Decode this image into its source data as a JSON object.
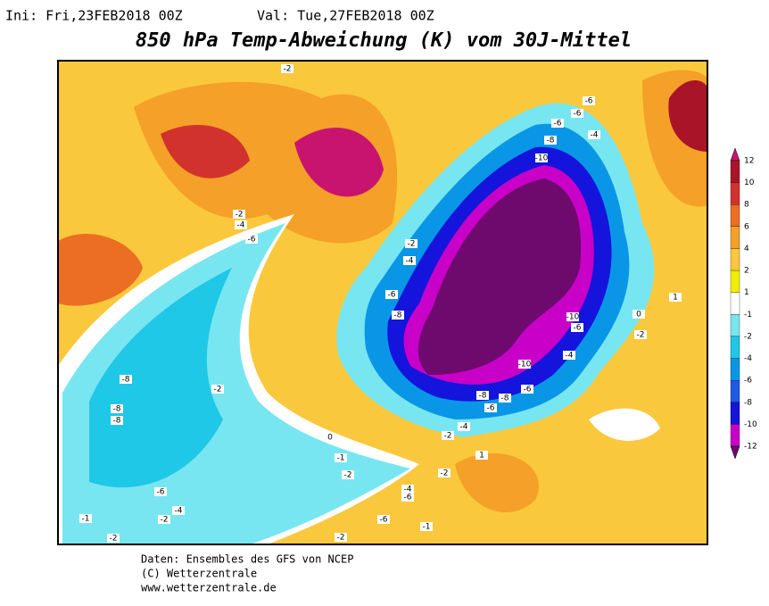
{
  "header": {
    "init": "Ini: Fri,23FEB2018 00Z",
    "valid": "Val: Tue,27FEB2018 00Z",
    "title": "850 hPa Temp-Abweichung (K) vom 30J-Mittel"
  },
  "legend": {
    "levels": [
      12,
      10,
      8,
      6,
      4,
      2,
      1,
      -1,
      -2,
      -4,
      -6,
      -8,
      -10,
      -12
    ],
    "colors": [
      "#c8146e",
      "#aa1428",
      "#d2322d",
      "#eb6e23",
      "#f5a028",
      "#fac83c",
      "#f0ee00",
      "#ffffff",
      "#78e6f0",
      "#1ec8e6",
      "#0a96e6",
      "#1e5ae6",
      "#1414dc",
      "#c800c8",
      "#6e0a6e"
    ]
  },
  "map": {
    "contour_labels": [
      -2,
      -6,
      -6,
      -6,
      -4,
      -8,
      -10,
      -2,
      -4,
      -6,
      -2,
      -4,
      -6,
      -8,
      -10,
      -6,
      -10,
      -8,
      -2,
      -8,
      -8,
      -8,
      -8,
      -6,
      -6,
      -4,
      -4,
      -2,
      -2,
      -1,
      -6,
      -4,
      -2,
      -1,
      -2,
      -2,
      -6,
      -1,
      -2,
      -4,
      -6,
      0,
      1,
      1,
      0,
      -2
    ]
  },
  "footer": {
    "line1": "Daten: Ensembles des GFS von NCEP",
    "line2": "(C) Wetterzentrale",
    "line3": "www.wetterzentrale.de"
  }
}
